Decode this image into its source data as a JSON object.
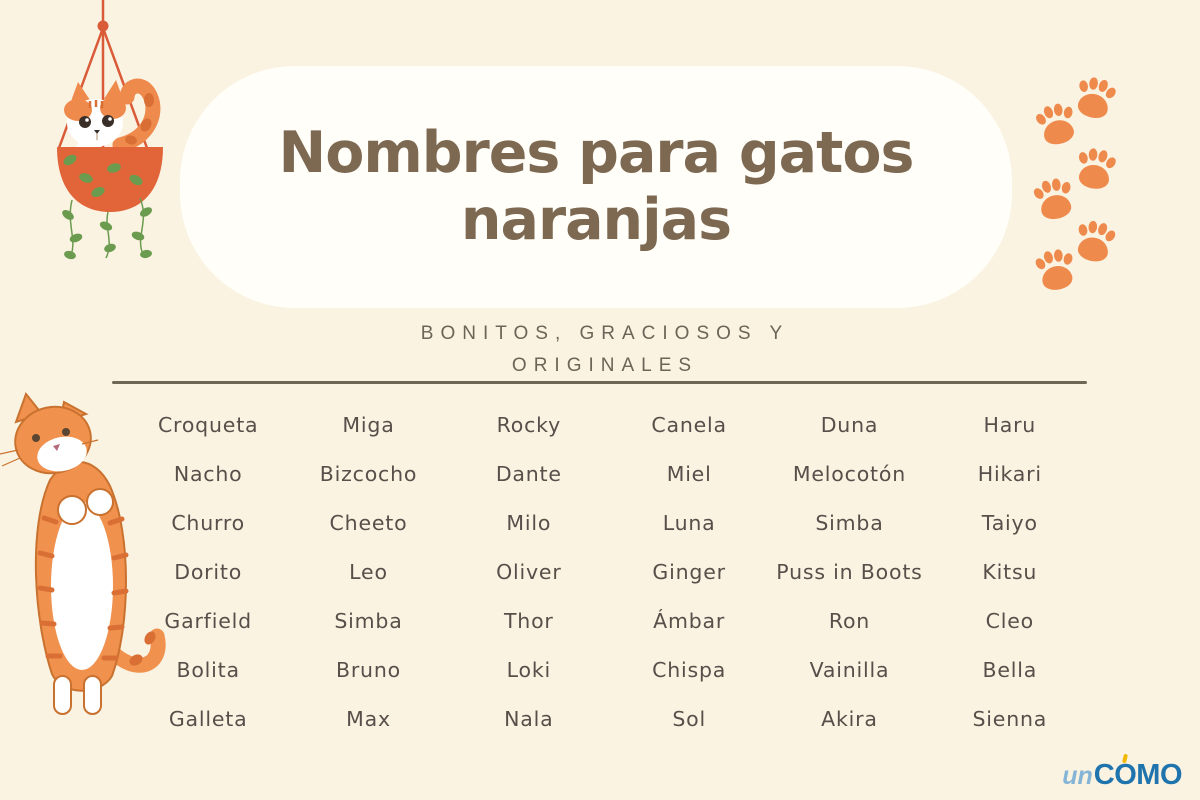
{
  "header": {
    "title_line1": "Nombres para gatos",
    "title_line2": "naranjas",
    "subtitle_line1": "BONITOS, GRACIOSOS Y",
    "subtitle_line2": "ORIGINALES"
  },
  "names": {
    "columns": [
      {
        "items": [
          "Croqueta",
          "Nacho",
          "Churro",
          "Dorito",
          "Garfield",
          "Bolita",
          "Galleta"
        ]
      },
      {
        "items": [
          "Miga",
          "Bizcocho",
          "Cheeto",
          "Leo",
          "Simba",
          "Bruno",
          "Max"
        ]
      },
      {
        "items": [
          "Rocky",
          "Dante",
          "Milo",
          "Oliver",
          "Thor",
          "Loki",
          "Nala"
        ]
      },
      {
        "items": [
          "Canela",
          "Miel",
          "Luna",
          "Ginger",
          "Ámbar",
          "Chispa",
          "Sol"
        ]
      },
      {
        "items": [
          "Duna",
          "Melocotón",
          "Simba",
          "Puss in Boots",
          "Ron",
          "Vainilla",
          "Akira"
        ]
      },
      {
        "items": [
          "Haru",
          "Hikari",
          "Taiyo",
          "Kitsu",
          "Cleo",
          "Bella",
          "Sienna"
        ]
      }
    ]
  },
  "footer": {
    "logo_prefix": "un",
    "logo_c": "C",
    "logo_o": "O",
    "logo_rest": "MO"
  },
  "illustrations": {
    "top_left": "orange cat lying in a hanging planter with trailing green leaves",
    "left": "long stretched orange tabby cat with white belly",
    "top_right": "six orange paw prints in a zigzag"
  },
  "colors": {
    "background": "#FAF3E2",
    "card": "#FFFEF8",
    "title": "#7D6852",
    "subtitle": "#6B6558",
    "names": "#57504A",
    "divider": "#6F6754",
    "orange": "#EF8A4D",
    "orange_dark": "#D96F35",
    "terracotta": "#E2653A",
    "leaf_green": "#6B9B4E",
    "logo_light_blue": "#85B4D6",
    "logo_blue": "#1F74AE",
    "logo_accent": "#F2B705"
  }
}
